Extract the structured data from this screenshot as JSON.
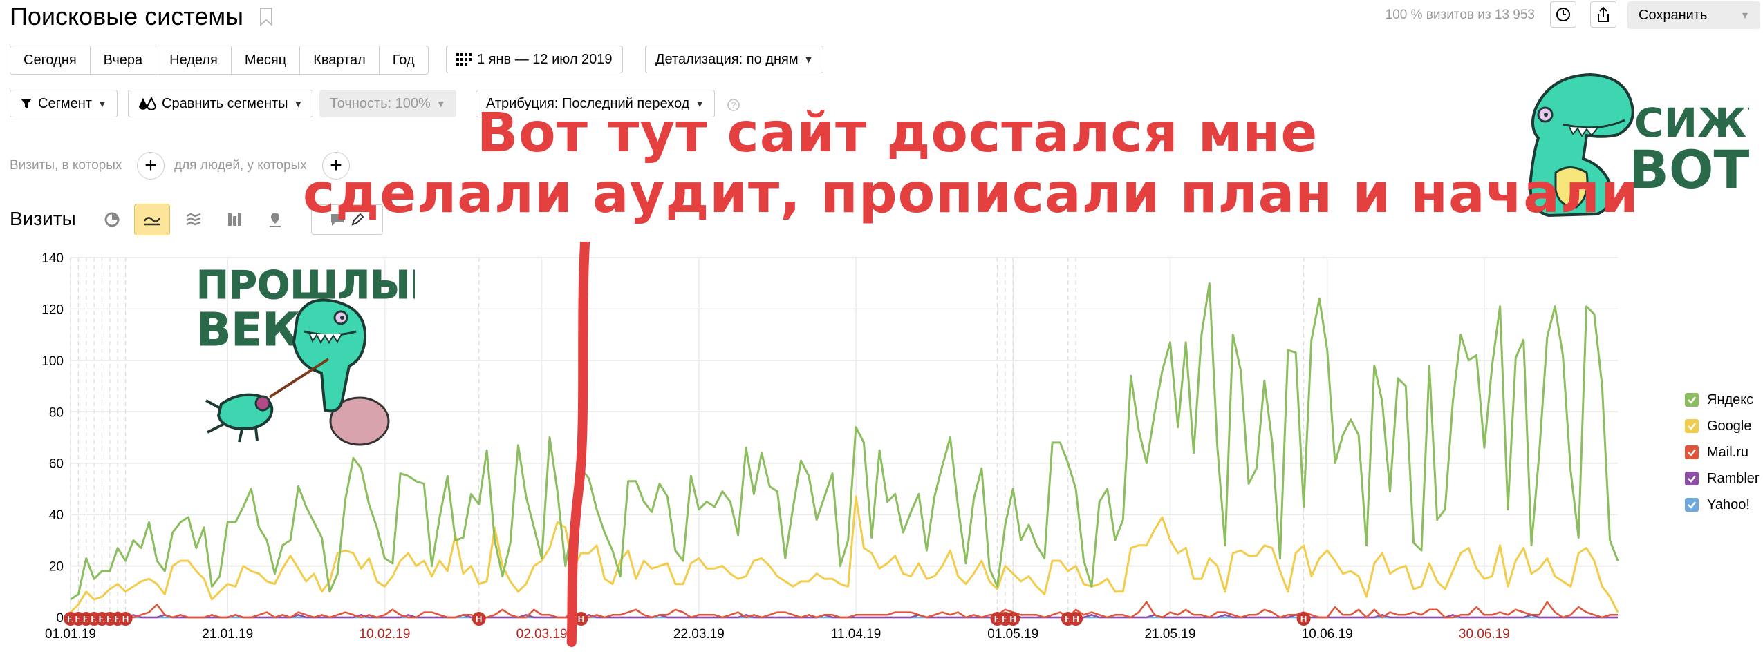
{
  "header": {
    "title": "Поисковые системы",
    "visits_total": "100 % визитов из 13 953",
    "save_label": "Сохранить"
  },
  "periods": [
    "Сегодня",
    "Вчера",
    "Неделя",
    "Месяц",
    "Квартал",
    "Год"
  ],
  "date_range": "1 янв — 12 июл 2019",
  "detail": "Детализация: по дням",
  "segment": "Сегмент",
  "compare": "Сравнить сегменты",
  "accuracy": "Точность: 100%",
  "attribution": "Атрибуция: Последний переход",
  "filters": {
    "visits_label": "Визиты, в которых",
    "people_label": "для людей, у которых"
  },
  "section_title": "Визиты",
  "annotation": {
    "line1": "Вот тут сайт достался мне",
    "line2": "сделали аудит, прописали план и начали"
  },
  "stickers": {
    "left_line1": "ПРОШЛЫЙ",
    "left_line2": "ВЕК",
    "right_line1": "СИЖУ",
    "right_line2": "ВОТ"
  },
  "colors": {
    "yandex": "#8cbd5f",
    "google": "#f2cd4d",
    "mailru": "#e0553a",
    "rambler": "#8e4ea8",
    "yahoo": "#6fa8dc",
    "annotation": "#e44040",
    "holiday_tick": "#b3261e",
    "marker": "#c6372f"
  },
  "chart_data": {
    "type": "line",
    "title": "",
    "ylabel": "",
    "ylim": [
      0,
      140
    ],
    "yticks": [
      0,
      20,
      40,
      60,
      80,
      100,
      120,
      140
    ],
    "x_start": "01.01.19",
    "x_end": "12.07.19",
    "xtick_labels": [
      {
        "label": "01.01.19",
        "day": 0,
        "holiday": false
      },
      {
        "label": "21.01.19",
        "day": 20,
        "holiday": false
      },
      {
        "label": "10.02.19",
        "day": 40,
        "holiday": true
      },
      {
        "label": "02.03.19",
        "day": 60,
        "holiday": true
      },
      {
        "label": "22.03.19",
        "day": 80,
        "holiday": false
      },
      {
        "label": "11.04.19",
        "day": 100,
        "holiday": false
      },
      {
        "label": "01.05.19",
        "day": 120,
        "holiday": false
      },
      {
        "label": "21.05.19",
        "day": 140,
        "holiday": false
      },
      {
        "label": "10.06.19",
        "day": 160,
        "holiday": false
      },
      {
        "label": "30.06.19",
        "day": 180,
        "holiday": true
      }
    ],
    "legend_position": "right",
    "grid": true,
    "series": [
      {
        "name": "Яндекс",
        "color_key": "yandex",
        "values": [
          7,
          9,
          23,
          15,
          18,
          18,
          27,
          22,
          30,
          27,
          37,
          22,
          18,
          33,
          37,
          39,
          27,
          35,
          12,
          16,
          37,
          37,
          43,
          50,
          35,
          30,
          17,
          28,
          30,
          51,
          43,
          37,
          31,
          10,
          17,
          46,
          62,
          58,
          44,
          35,
          23,
          21,
          56,
          55,
          53,
          52,
          20,
          39,
          55,
          30,
          31,
          48,
          44,
          65,
          30,
          16,
          29,
          67,
          47,
          35,
          23,
          70,
          49,
          20,
          37,
          58,
          54,
          42,
          33,
          26,
          16,
          53,
          53,
          45,
          41,
          52,
          47,
          26,
          22,
          55,
          42,
          45,
          43,
          49,
          45,
          32,
          66,
          48,
          64,
          51,
          49,
          23,
          43,
          61,
          55,
          38,
          47,
          56,
          20,
          30,
          74,
          68,
          31,
          65,
          45,
          48,
          33,
          41,
          48,
          26,
          47,
          59,
          70,
          43,
          21,
          46,
          58,
          19,
          12,
          36,
          50,
          30,
          36,
          28,
          23,
          68,
          68,
          60,
          50,
          22,
          12,
          45,
          50,
          30,
          38,
          94,
          73,
          60,
          79,
          96,
          107,
          74,
          107,
          64,
          110,
          130,
          67,
          28,
          110,
          96,
          52,
          58,
          92,
          68,
          23,
          104,
          103,
          43,
          108,
          124,
          104,
          60,
          71,
          77,
          71,
          28,
          98,
          84,
          49,
          93,
          90,
          29,
          26,
          98,
          38,
          42,
          84,
          110,
          100,
          102,
          66,
          98,
          121,
          42,
          101,
          108,
          28,
          64,
          109,
          121,
          102,
          57,
          31,
          121,
          118,
          90,
          30,
          22
        ]
      },
      {
        "name": "Google",
        "color_key": "google",
        "values": [
          2,
          5,
          10,
          7,
          8,
          11,
          13,
          10,
          12,
          14,
          15,
          13,
          9,
          20,
          22,
          22,
          18,
          15,
          7,
          10,
          13,
          12,
          20,
          18,
          17,
          14,
          13,
          19,
          24,
          19,
          14,
          17,
          10,
          14,
          25,
          26,
          25,
          19,
          23,
          14,
          12,
          16,
          22,
          25,
          20,
          22,
          16,
          22,
          18,
          32,
          17,
          20,
          13,
          14,
          35,
          20,
          14,
          10,
          13,
          20,
          22,
          27,
          37,
          35,
          19,
          25,
          25,
          28,
          15,
          13,
          22,
          26,
          15,
          22,
          19,
          20,
          21,
          13,
          13,
          21,
          23,
          19,
          19,
          20,
          17,
          15,
          16,
          22,
          23,
          20,
          16,
          14,
          12,
          14,
          14,
          17,
          15,
          15,
          13,
          12,
          47,
          27,
          25,
          19,
          21,
          24,
          17,
          16,
          21,
          15,
          16,
          20,
          26,
          16,
          13,
          17,
          22,
          14,
          11,
          20,
          17,
          14,
          16,
          12,
          9,
          22,
          22,
          18,
          20,
          13,
          12,
          13,
          15,
          10,
          10,
          27,
          28,
          28,
          34,
          39,
          30,
          25,
          27,
          15,
          15,
          23,
          20,
          10,
          25,
          26,
          24,
          24,
          28,
          27,
          18,
          10,
          25,
          28,
          16,
          23,
          26,
          22,
          17,
          18,
          16,
          8,
          21,
          25,
          17,
          19,
          20,
          11,
          12,
          21,
          14,
          11,
          18,
          25,
          27,
          19,
          15,
          16,
          28,
          12,
          22,
          27,
          17,
          19,
          23,
          16,
          14,
          12,
          25,
          27,
          22,
          12,
          8,
          2
        ]
      },
      {
        "name": "Mail.ru",
        "color_key": "mailru",
        "values": [
          0,
          0,
          0,
          1,
          0,
          0,
          2,
          1,
          0,
          1,
          2,
          5,
          1,
          0,
          1,
          0,
          0,
          0,
          1,
          0,
          0,
          1,
          0,
          0,
          1,
          2,
          0,
          1,
          0,
          2,
          1,
          0,
          1,
          0,
          1,
          2,
          1,
          0,
          1,
          0,
          1,
          3,
          1,
          0,
          0,
          2,
          2,
          1,
          0,
          0,
          1,
          1,
          0,
          0,
          1,
          3,
          1,
          0,
          0,
          3,
          1,
          1,
          0,
          0,
          2,
          1,
          0,
          1,
          0,
          1,
          1,
          2,
          3,
          1,
          0,
          1,
          1,
          3,
          2,
          0,
          1,
          1,
          1,
          0,
          1,
          2,
          0,
          1,
          0,
          1,
          2,
          2,
          1,
          0,
          1,
          0,
          1,
          1,
          0,
          0,
          1,
          1,
          1,
          1,
          1,
          2,
          2,
          2,
          1,
          0,
          1,
          2,
          1,
          2,
          0,
          1,
          0,
          1,
          1,
          3,
          2,
          1,
          1,
          1,
          0,
          1,
          2,
          0,
          3,
          1,
          2,
          1,
          0,
          1,
          1,
          0,
          2,
          6,
          1,
          0,
          2,
          1,
          3,
          1,
          1,
          0,
          2,
          2,
          1,
          0,
          1,
          1,
          3,
          2,
          0,
          1,
          1,
          2,
          1,
          0,
          0,
          4,
          1,
          1,
          3,
          0,
          3,
          0,
          2,
          1,
          1,
          2,
          1,
          3,
          3,
          0,
          0,
          1,
          1,
          4,
          1,
          1,
          2,
          1,
          3,
          2,
          1,
          1,
          6,
          2,
          0,
          1,
          4,
          2,
          1,
          0,
          1,
          1
        ]
      },
      {
        "name": "Rambler",
        "color_key": "rambler",
        "values": [
          0,
          0,
          1,
          0,
          0,
          0,
          0,
          0,
          1,
          0,
          0,
          0,
          1,
          0,
          0,
          0,
          0,
          0,
          0,
          0,
          0,
          1,
          0,
          0,
          0,
          0,
          0,
          0,
          0,
          1,
          0,
          0,
          0,
          0,
          0,
          0,
          0,
          1,
          0,
          0,
          0,
          0,
          0,
          1,
          0,
          0,
          0,
          0,
          0,
          0,
          1,
          0,
          0,
          0,
          0,
          0,
          0,
          0,
          1,
          0,
          0,
          0,
          0,
          0,
          0,
          0,
          1,
          0,
          0,
          0,
          0,
          0,
          0,
          0,
          0,
          1,
          0,
          0,
          0,
          0,
          0,
          0,
          0,
          0,
          0,
          0,
          1,
          0,
          0,
          0,
          0,
          0,
          0,
          0,
          0,
          0,
          1,
          0,
          0,
          0,
          0,
          0,
          0,
          0,
          0,
          0,
          0,
          0,
          1,
          0,
          0,
          0,
          0,
          0,
          0,
          0,
          0,
          0,
          0,
          0,
          1,
          0,
          0,
          0,
          0,
          0,
          0,
          0,
          0,
          0,
          1,
          0,
          0,
          0,
          0,
          0,
          0,
          0,
          1,
          0,
          0,
          0,
          0,
          0,
          0,
          0,
          0,
          1,
          0,
          0,
          0,
          0,
          0,
          0,
          0,
          0,
          1,
          0,
          0,
          0,
          0,
          0,
          0,
          0,
          0,
          0,
          0,
          1,
          0,
          0,
          0,
          0,
          0,
          0,
          0,
          0,
          1,
          0,
          0,
          0,
          0,
          0,
          0,
          0,
          0,
          0,
          1,
          0,
          0,
          0,
          0,
          0,
          0,
          0,
          0,
          0,
          0,
          0
        ]
      },
      {
        "name": "Yahoo!",
        "color_key": "yahoo",
        "values": [
          0,
          0,
          0,
          0,
          0,
          0,
          0,
          0,
          0,
          0,
          0,
          0,
          0,
          0,
          0,
          0,
          0,
          0,
          0,
          0,
          0,
          0,
          0,
          0,
          0,
          0,
          0,
          0,
          0,
          0,
          0,
          0,
          0,
          0,
          0,
          0,
          0,
          0,
          0,
          0,
          0,
          0,
          0,
          0,
          0,
          0,
          0,
          0,
          0,
          0,
          0,
          0,
          0,
          0,
          0,
          0,
          0,
          0,
          0,
          0,
          0,
          0,
          0,
          0,
          0,
          0,
          0,
          0,
          0,
          0,
          0,
          0,
          0,
          0,
          0,
          0,
          0,
          0,
          0,
          0,
          0,
          0,
          0,
          0,
          0,
          0,
          0,
          0,
          0,
          0,
          0,
          0,
          0,
          0,
          0,
          0,
          0,
          0,
          0,
          0,
          0,
          0,
          0,
          0,
          0,
          0,
          0,
          0,
          0,
          0,
          0,
          0,
          0,
          0,
          0,
          0,
          0,
          0,
          0,
          0,
          0,
          0,
          0,
          0,
          0,
          0,
          0,
          0,
          0,
          0,
          0,
          0,
          0,
          0,
          0,
          0,
          0,
          0,
          0,
          0,
          0,
          0,
          0,
          0,
          0,
          0,
          0,
          0,
          0,
          0,
          0,
          0,
          0,
          0,
          0,
          0,
          0,
          0,
          0,
          0,
          0,
          0,
          0,
          0,
          0,
          0,
          0,
          0,
          0,
          0,
          0,
          0,
          0,
          0,
          0,
          0,
          0,
          0,
          0,
          0,
          0,
          0,
          0,
          0,
          0,
          0,
          0,
          0,
          0,
          0,
          0,
          0,
          0,
          0,
          0,
          0,
          0,
          0
        ]
      }
    ],
    "markers": {
      "letter": "Н",
      "days": [
        0,
        1,
        2,
        3,
        4,
        5,
        6,
        7,
        52,
        65,
        118,
        119,
        120,
        127,
        128,
        157
      ]
    },
    "annotation_line_day": 64.5
  }
}
